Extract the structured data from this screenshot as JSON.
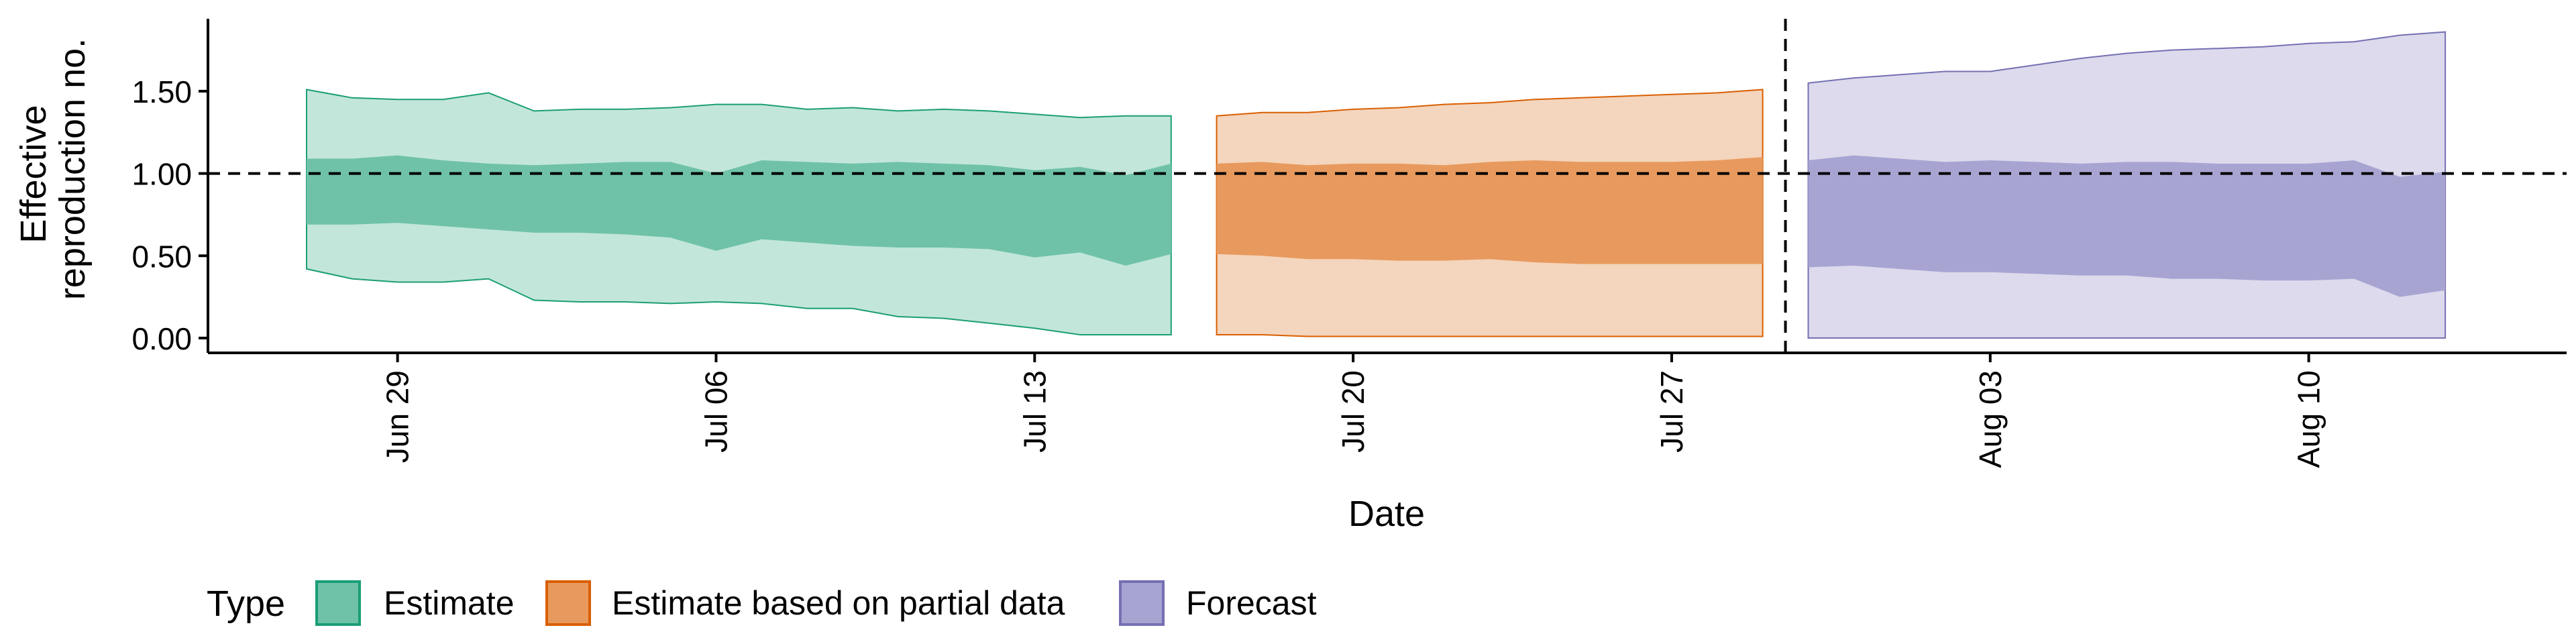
{
  "chart_data": {
    "type": "area",
    "title": "",
    "xlabel": "Date",
    "ylabel_lines": [
      "Effective",
      "reproduction no."
    ],
    "x_ticks": [
      "Jun 29",
      "Jul 06",
      "Jul 13",
      "Jul 20",
      "Jul 27",
      "Aug 03",
      "Aug 10"
    ],
    "x_tick_dates": [
      "2020-06-29",
      "2020-07-06",
      "2020-07-13",
      "2020-07-20",
      "2020-07-27",
      "2020-08-03",
      "2020-08-10"
    ],
    "xlim": [
      "2020-06-24T20:00:00",
      "2020-08-15T16:00:00"
    ],
    "y_ticks": [
      "0.00",
      "0.50",
      "1.00",
      "1.50"
    ],
    "y_tick_values": [
      0,
      0.5,
      1.0,
      1.5
    ],
    "ylim": [
      -0.09,
      1.94
    ],
    "reference_hline": 1.0,
    "reference_vline_date": "2020-07-29T12:00:00",
    "legend": {
      "title": "Type",
      "position": "bottom",
      "items": [
        {
          "label": "Estimate",
          "fill": "#6fc2a8",
          "stroke": "#1b9e77"
        },
        {
          "label": "Estimate based on partial data",
          "fill": "#e89a5e",
          "stroke": "#d95f02"
        },
        {
          "label": "Forecast",
          "fill": "#a8a4d2",
          "stroke": "#7570b3"
        }
      ]
    },
    "series": [
      {
        "name": "Estimate",
        "color": "#1b9e77",
        "inner_color": "#6fc2a8",
        "outer_color": "#c3e6da",
        "dates": [
          "2020-06-27",
          "2020-06-28",
          "2020-06-29",
          "2020-06-30",
          "2020-07-01",
          "2020-07-02",
          "2020-07-03",
          "2020-07-04",
          "2020-07-05",
          "2020-07-06",
          "2020-07-07",
          "2020-07-08",
          "2020-07-09",
          "2020-07-10",
          "2020-07-11",
          "2020-07-12",
          "2020-07-13",
          "2020-07-14",
          "2020-07-15",
          "2020-07-16"
        ],
        "lower_90": [
          0.42,
          0.36,
          0.34,
          0.34,
          0.36,
          0.23,
          0.22,
          0.22,
          0.21,
          0.22,
          0.21,
          0.18,
          0.18,
          0.13,
          0.12,
          0.09,
          0.06,
          0.02,
          0.02,
          0.02
        ],
        "lower_50": [
          0.69,
          0.69,
          0.7,
          0.68,
          0.66,
          0.64,
          0.64,
          0.63,
          0.61,
          0.53,
          0.6,
          0.58,
          0.56,
          0.55,
          0.55,
          0.54,
          0.49,
          0.52,
          0.44,
          0.51
        ],
        "upper_50": [
          1.09,
          1.09,
          1.11,
          1.08,
          1.06,
          1.05,
          1.06,
          1.07,
          1.07,
          1.0,
          1.08,
          1.07,
          1.06,
          1.07,
          1.06,
          1.05,
          1.02,
          1.04,
          0.99,
          1.06
        ],
        "upper_90": [
          1.51,
          1.46,
          1.45,
          1.45,
          1.49,
          1.38,
          1.39,
          1.39,
          1.4,
          1.42,
          1.42,
          1.39,
          1.4,
          1.38,
          1.39,
          1.38,
          1.36,
          1.34,
          1.35,
          1.35
        ]
      },
      {
        "name": "Estimate based on partial data",
        "color": "#d95f02",
        "inner_color": "#e89a5e",
        "outer_color": "#f4d5bd",
        "dates": [
          "2020-07-17",
          "2020-07-18",
          "2020-07-19",
          "2020-07-20",
          "2020-07-21",
          "2020-07-22",
          "2020-07-23",
          "2020-07-24",
          "2020-07-25",
          "2020-07-26",
          "2020-07-27",
          "2020-07-28",
          "2020-07-29"
        ],
        "lower_90": [
          0.02,
          0.02,
          0.01,
          0.01,
          0.01,
          0.01,
          0.01,
          0.01,
          0.01,
          0.01,
          0.01,
          0.01,
          0.01
        ],
        "lower_50": [
          0.51,
          0.5,
          0.48,
          0.48,
          0.47,
          0.47,
          0.48,
          0.46,
          0.45,
          0.45,
          0.45,
          0.45,
          0.45
        ],
        "upper_50": [
          1.06,
          1.07,
          1.05,
          1.06,
          1.06,
          1.05,
          1.07,
          1.08,
          1.07,
          1.07,
          1.07,
          1.08,
          1.1
        ],
        "upper_90": [
          1.35,
          1.37,
          1.37,
          1.39,
          1.4,
          1.42,
          1.43,
          1.45,
          1.46,
          1.47,
          1.48,
          1.49,
          1.51
        ]
      },
      {
        "name": "Forecast",
        "color": "#7570b3",
        "inner_color": "#a8a4d2",
        "outer_color": "#dcdaec",
        "dates": [
          "2020-07-30",
          "2020-07-31",
          "2020-08-01",
          "2020-08-02",
          "2020-08-03",
          "2020-08-04",
          "2020-08-05",
          "2020-08-06",
          "2020-08-07",
          "2020-08-08",
          "2020-08-09",
          "2020-08-10",
          "2020-08-11",
          "2020-08-12",
          "2020-08-13"
        ],
        "lower_90": [
          0,
          0,
          0,
          0,
          0,
          0,
          0,
          0,
          0,
          0,
          0,
          0,
          0,
          0,
          0
        ],
        "lower_50": [
          0.43,
          0.44,
          0.42,
          0.4,
          0.4,
          0.39,
          0.38,
          0.38,
          0.36,
          0.36,
          0.35,
          0.35,
          0.36,
          0.25,
          0.29
        ],
        "upper_50": [
          1.08,
          1.11,
          1.09,
          1.07,
          1.08,
          1.07,
          1.06,
          1.07,
          1.07,
          1.06,
          1.06,
          1.06,
          1.08,
          0.98,
          1.01
        ],
        "upper_90": [
          1.55,
          1.58,
          1.6,
          1.62,
          1.62,
          1.66,
          1.7,
          1.73,
          1.75,
          1.76,
          1.77,
          1.79,
          1.8,
          1.84,
          1.86
        ]
      }
    ]
  }
}
